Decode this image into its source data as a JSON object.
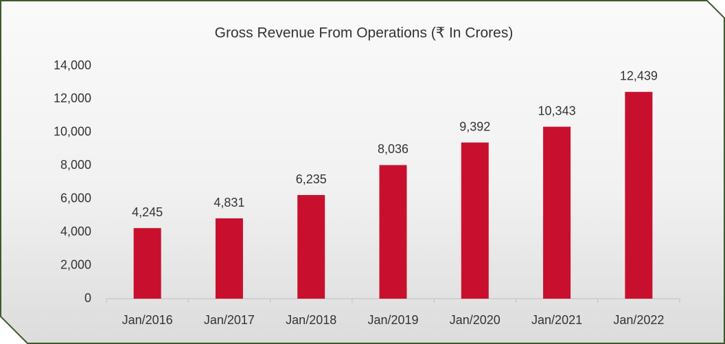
{
  "chart_data": {
    "type": "bar",
    "title": "Gross Revenue From Operations (₹ In Crores)",
    "categories": [
      "Jan/2016",
      "Jan/2017",
      "Jan/2018",
      "Jan/2019",
      "Jan/2020",
      "Jan/2021",
      "Jan/2022"
    ],
    "values": [
      4245,
      4831,
      6235,
      8036,
      9392,
      10343,
      12439
    ],
    "value_labels": [
      "4,245",
      "4,831",
      "6,235",
      "8,036",
      "9,392",
      "10,343",
      "12,439"
    ],
    "color": "#c8102e",
    "ylim": [
      0,
      14000
    ],
    "yticks": [
      0,
      {
        "value": 2000,
        "label": "2,000"
      },
      {
        "value": 4000,
        "label": "4,000"
      },
      {
        "value": 6000,
        "label": "6,000"
      },
      {
        "value": 8000,
        "label": "8,000"
      },
      {
        "value": 10000,
        "label": "10,000"
      },
      {
        "value": 12000,
        "label": "12,000"
      },
      {
        "value": 14000,
        "label": "14,000"
      }
    ],
    "grid": false
  }
}
